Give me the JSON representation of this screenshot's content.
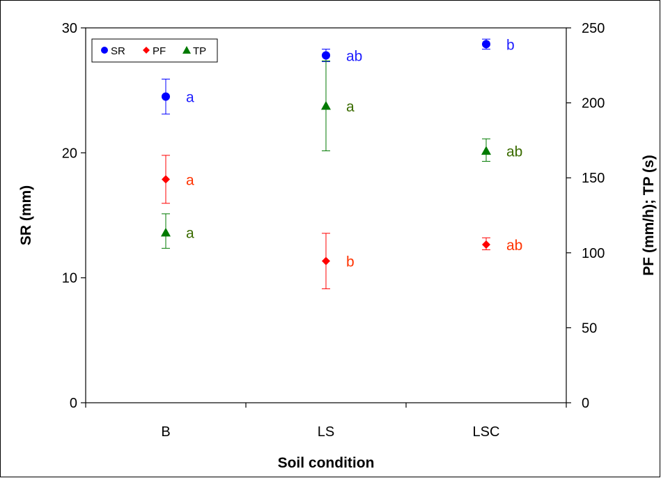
{
  "chart_data": {
    "type": "scatter",
    "categories": [
      "B",
      "LS",
      "LSC"
    ],
    "xlabel": "Soil condition",
    "ylabel": "SR (mm)",
    "y2label": "PF (mm/h); TP (s)",
    "ylim": [
      0,
      30
    ],
    "y2lim": [
      0,
      250
    ],
    "yticks": [
      "0",
      "10",
      "20",
      "30"
    ],
    "y2ticks": [
      "0",
      "50",
      "100",
      "150",
      "200",
      "250"
    ],
    "legend_position": "top-left",
    "series": [
      {
        "name": "SR",
        "axis": "left",
        "marker": "circle",
        "color": "#0000ff",
        "label_color": "#1f1fff",
        "values": [
          24.5,
          27.8,
          28.7
        ],
        "err_low": [
          23.1,
          27.3,
          28.3
        ],
        "err_high": [
          25.9,
          28.3,
          29.1
        ],
        "sig": [
          "a",
          "ab",
          "b"
        ]
      },
      {
        "name": "PF",
        "axis": "right",
        "marker": "diamond",
        "color": "#ff0000",
        "label_color": "#ff3300",
        "values": [
          149,
          94.5,
          105.5
        ],
        "err_low": [
          133,
          76,
          102
        ],
        "err_high": [
          165,
          113,
          110
        ],
        "sig": [
          "a",
          "b",
          "ab"
        ]
      },
      {
        "name": "TP",
        "axis": "right",
        "marker": "triangle",
        "color": "#007a00",
        "label_color": "#3a6b00",
        "values": [
          113.5,
          198,
          168
        ],
        "err_low": [
          103,
          168,
          161
        ],
        "err_high": [
          126,
          228,
          176
        ],
        "sig": [
          "a",
          "a",
          "ab"
        ]
      }
    ]
  }
}
